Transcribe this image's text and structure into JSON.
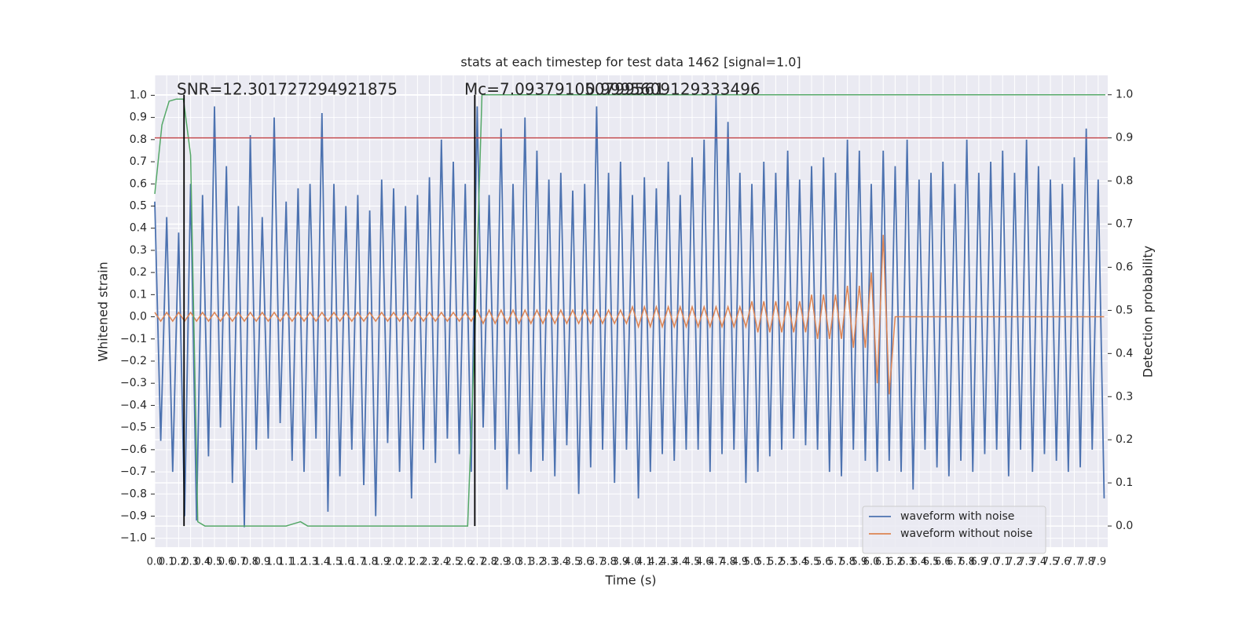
{
  "chart_data": {
    "type": "line",
    "title": "stats at each timestep for test data 1462 [signal=1.0]",
    "xlabel": "Time (s)",
    "ylabel": "Whitened strain",
    "y2label": "Detection probability",
    "annotations": [
      "SNR=12.301727294921875",
      "Mc=7.093791050799561",
      "0.9995609129333496"
    ],
    "legend": "lower right",
    "grid": true,
    "xlim": [
      0,
      7.98
    ],
    "ylim": [
      -1.04,
      1.09
    ],
    "y2lim": [
      -0.049,
      1.045
    ],
    "xticks": [
      {
        "value": 0,
        "label": "0.0"
      },
      0.1,
      0.2,
      0.3,
      0.4,
      0.5,
      0.6,
      0.7,
      0.8,
      0.9,
      {
        "value": 1,
        "label": "1.0"
      },
      1.1,
      1.2,
      1.3,
      1.4,
      1.5,
      1.6,
      1.7,
      1.8,
      1.9,
      {
        "value": 2,
        "label": "2.0"
      },
      2.1,
      2.2,
      2.3,
      2.4,
      2.5,
      2.6,
      2.7,
      2.8,
      2.9,
      {
        "value": 3,
        "label": "3.0"
      },
      3.1,
      3.2,
      3.3,
      3.4,
      3.5,
      3.6,
      3.7,
      3.8,
      3.9,
      {
        "value": 4,
        "label": "4.0"
      },
      4.1,
      4.2,
      4.3,
      4.4,
      4.5,
      4.6,
      4.7,
      4.8,
      4.9,
      {
        "value": 5,
        "label": "5.0"
      },
      5.1,
      5.2,
      5.3,
      5.4,
      5.5,
      5.6,
      5.7,
      5.8,
      5.9,
      {
        "value": 6,
        "label": "6.0"
      },
      6.1,
      6.2,
      6.3,
      6.4,
      6.5,
      6.6,
      6.7,
      6.8,
      6.9,
      {
        "value": 7,
        "label": "7.0"
      },
      7.1,
      7.2,
      7.3,
      7.4,
      7.5,
      7.6,
      7.7,
      7.8,
      7.9
    ],
    "yticks": [
      {
        "value": -1,
        "label": "−1.0"
      },
      {
        "value": -0.9,
        "label": "−0.9"
      },
      {
        "value": -0.8,
        "label": "−0.8"
      },
      {
        "value": -0.7,
        "label": "−0.7"
      },
      {
        "value": -0.6,
        "label": "−0.6"
      },
      {
        "value": -0.5,
        "label": "−0.5"
      },
      {
        "value": -0.4,
        "label": "−0.4"
      },
      {
        "value": -0.3,
        "label": "−0.3"
      },
      {
        "value": -0.2,
        "label": "−0.2"
      },
      {
        "value": -0.1,
        "label": "−0.1"
      },
      {
        "value": 0,
        "label": "0.0"
      },
      0.1,
      0.2,
      0.3,
      0.4,
      0.5,
      0.6,
      0.7,
      0.8,
      0.9,
      {
        "value": 1,
        "label": "1.0"
      }
    ],
    "y2ticks": [
      {
        "value": 0,
        "label": "0.0"
      },
      0.1,
      0.2,
      0.3,
      0.4,
      0.5,
      0.6,
      0.7,
      0.8,
      0.9,
      {
        "value": 1,
        "label": "1.0"
      }
    ],
    "x": [
      0,
      0.05,
      0.1,
      0.15,
      0.2,
      0.25,
      0.3,
      0.35,
      0.4,
      0.45,
      0.5,
      0.55,
      0.6,
      0.65,
      0.7,
      0.75,
      0.8,
      0.85,
      0.9,
      0.95,
      1,
      1.05,
      1.1,
      1.15,
      1.2,
      1.25,
      1.3,
      1.35,
      1.4,
      1.45,
      1.5,
      1.55,
      1.6,
      1.65,
      1.7,
      1.75,
      1.8,
      1.85,
      1.9,
      1.95,
      2,
      2.05,
      2.1,
      2.15,
      2.2,
      2.25,
      2.3,
      2.35,
      2.4,
      2.45,
      2.5,
      2.55,
      2.6,
      2.65,
      2.7,
      2.75,
      2.8,
      2.85,
      2.9,
      2.95,
      3,
      3.05,
      3.1,
      3.15,
      3.2,
      3.25,
      3.3,
      3.35,
      3.4,
      3.45,
      3.5,
      3.55,
      3.6,
      3.65,
      3.7,
      3.75,
      3.8,
      3.85,
      3.9,
      3.95,
      4,
      4.05,
      4.1,
      4.15,
      4.2,
      4.25,
      4.3,
      4.35,
      4.4,
      4.45,
      4.5,
      4.55,
      4.6,
      4.65,
      4.7,
      4.75,
      4.8,
      4.85,
      4.9,
      4.95,
      5,
      5.05,
      5.1,
      5.15,
      5.2,
      5.25,
      5.3,
      5.35,
      5.4,
      5.45,
      5.5,
      5.55,
      5.6,
      5.65,
      5.7,
      5.75,
      5.8,
      5.85,
      5.9,
      5.95,
      6,
      6.05,
      6.1,
      6.15,
      6.2,
      6.25,
      6.3,
      6.35,
      6.4,
      6.45,
      6.5,
      6.55,
      6.6,
      6.65,
      6.7,
      6.75,
      6.8,
      6.85,
      6.9,
      6.95,
      7,
      7.05,
      7.1,
      7.15,
      7.2,
      7.25,
      7.3,
      7.35,
      7.4,
      7.45,
      7.5,
      7.55,
      7.6,
      7.65,
      7.7,
      7.75,
      7.8,
      7.85,
      7.9,
      7.95
    ],
    "series": [
      {
        "name": "waveform with noise",
        "color": "#4c72b0",
        "values": [
          0.52,
          -0.56,
          0.45,
          -0.7,
          0.38,
          -0.9,
          0.6,
          -0.92,
          0.55,
          -0.63,
          0.95,
          -0.5,
          0.68,
          -0.75,
          0.5,
          -0.95,
          0.82,
          -0.6,
          0.45,
          -0.55,
          0.9,
          -0.48,
          0.52,
          -0.65,
          0.58,
          -0.7,
          0.6,
          -0.55,
          0.92,
          -0.88,
          0.6,
          -0.72,
          0.5,
          -0.6,
          0.55,
          -0.76,
          0.48,
          -0.9,
          0.62,
          -0.57,
          0.58,
          -0.7,
          0.5,
          -0.82,
          0.55,
          -0.6,
          0.63,
          -0.66,
          0.8,
          -0.55,
          0.7,
          -0.62,
          0.6,
          -0.7,
          0.95,
          -0.5,
          0.55,
          -0.6,
          0.85,
          -0.78,
          0.6,
          -0.62,
          0.9,
          -0.7,
          0.75,
          -0.65,
          0.62,
          -0.72,
          0.65,
          -0.58,
          0.57,
          -0.8,
          0.6,
          -0.68,
          0.95,
          -0.6,
          0.65,
          -0.75,
          0.7,
          -0.6,
          0.55,
          -0.82,
          0.63,
          -0.7,
          0.58,
          -0.62,
          0.7,
          -0.65,
          0.55,
          -0.6,
          0.72,
          -0.6,
          0.8,
          -0.7,
          1.0,
          -0.62,
          0.88,
          -0.6,
          0.65,
          -0.75,
          0.6,
          -0.7,
          0.7,
          -0.63,
          0.65,
          -0.6,
          0.75,
          -0.55,
          0.62,
          -0.58,
          0.68,
          -0.6,
          0.72,
          -0.7,
          0.65,
          -0.72,
          0.8,
          -0.6,
          0.75,
          -0.65,
          0.6,
          -0.7,
          0.75,
          -0.65,
          0.68,
          -0.7,
          0.8,
          -0.78,
          0.62,
          -0.6,
          0.65,
          -0.68,
          0.7,
          -0.72,
          0.6,
          -0.65,
          0.8,
          -0.7,
          0.65,
          -0.62,
          0.7,
          -0.6,
          0.75,
          -0.72,
          0.65,
          -0.6,
          0.8,
          -0.7,
          0.68,
          -0.62,
          0.62,
          -0.65,
          0.6,
          -0.7,
          0.72,
          -0.68,
          0.85,
          -0.6,
          0.62,
          -0.82
        ]
      },
      {
        "name": "waveform without noise",
        "color": "#dd8452",
        "values": [
          0.02,
          -0.02,
          0.02,
          -0.02,
          0.02,
          -0.02,
          0.02,
          -0.02,
          0.02,
          -0.02,
          0.02,
          -0.02,
          0.02,
          -0.02,
          0.02,
          -0.02,
          0.02,
          -0.02,
          0.02,
          -0.02,
          0.02,
          -0.02,
          0.02,
          -0.02,
          0.02,
          -0.02,
          0.02,
          -0.02,
          0.02,
          -0.02,
          0.02,
          -0.02,
          0.02,
          -0.02,
          0.02,
          -0.02,
          0.02,
          -0.02,
          0.02,
          -0.02,
          0.02,
          -0.02,
          0.02,
          -0.02,
          0.02,
          -0.02,
          0.02,
          -0.02,
          0.02,
          -0.02,
          0.02,
          -0.02,
          0.02,
          -0.02,
          0.03,
          -0.03,
          0.03,
          -0.03,
          0.03,
          -0.03,
          0.03,
          -0.03,
          0.03,
          -0.03,
          0.03,
          -0.03,
          0.03,
          -0.03,
          0.03,
          -0.03,
          0.03,
          -0.03,
          0.03,
          -0.03,
          0.03,
          -0.03,
          0.03,
          -0.03,
          0.03,
          -0.03,
          0.045,
          -0.045,
          0.045,
          -0.045,
          0.045,
          -0.045,
          0.045,
          -0.045,
          0.045,
          -0.045,
          0.045,
          -0.045,
          0.045,
          -0.045,
          0.045,
          -0.045,
          0.045,
          -0.045,
          0.045,
          -0.045,
          0.07,
          -0.07,
          0.07,
          -0.07,
          0.07,
          -0.07,
          0.07,
          -0.07,
          0.07,
          -0.07,
          0.1,
          -0.1,
          0.1,
          -0.1,
          0.1,
          -0.1,
          0.14,
          -0.14,
          0.14,
          -0.14,
          0.2,
          -0.3,
          0.37,
          -0.35,
          0,
          0,
          0,
          0,
          0,
          0,
          0,
          0,
          0,
          0,
          0,
          0,
          0,
          0,
          0,
          0,
          0,
          0,
          0,
          0,
          0,
          0,
          0,
          0,
          0,
          0,
          0,
          0,
          0,
          0,
          0,
          0,
          0,
          0,
          0,
          0
        ]
      },
      {
        "color": "#55a868",
        "axis": "y2",
        "x": [
          0,
          0.06,
          0.12,
          0.18,
          0.24,
          0.3,
          0.36,
          0.42,
          1.1,
          1.16,
          1.22,
          1.28,
          1.34,
          2.0,
          2.62,
          2.68,
          2.74,
          7.96
        ],
        "values": [
          0.77,
          0.93,
          0.985,
          0.99,
          0.99,
          0.86,
          0.01,
          0,
          0,
          0.005,
          0.01,
          0,
          0,
          0,
          0,
          0.44,
          1.0,
          1.0
        ]
      }
    ],
    "hlines": [
      {
        "value": 0.9,
        "axis": "y2",
        "color": "#c44e52"
      }
    ],
    "vlines": [
      {
        "x": 0.245,
        "y2": [
          0,
          1
        ],
        "color": "#000000"
      },
      {
        "x": 2.68,
        "y2": [
          0,
          1
        ],
        "color": "#000000"
      }
    ]
  }
}
